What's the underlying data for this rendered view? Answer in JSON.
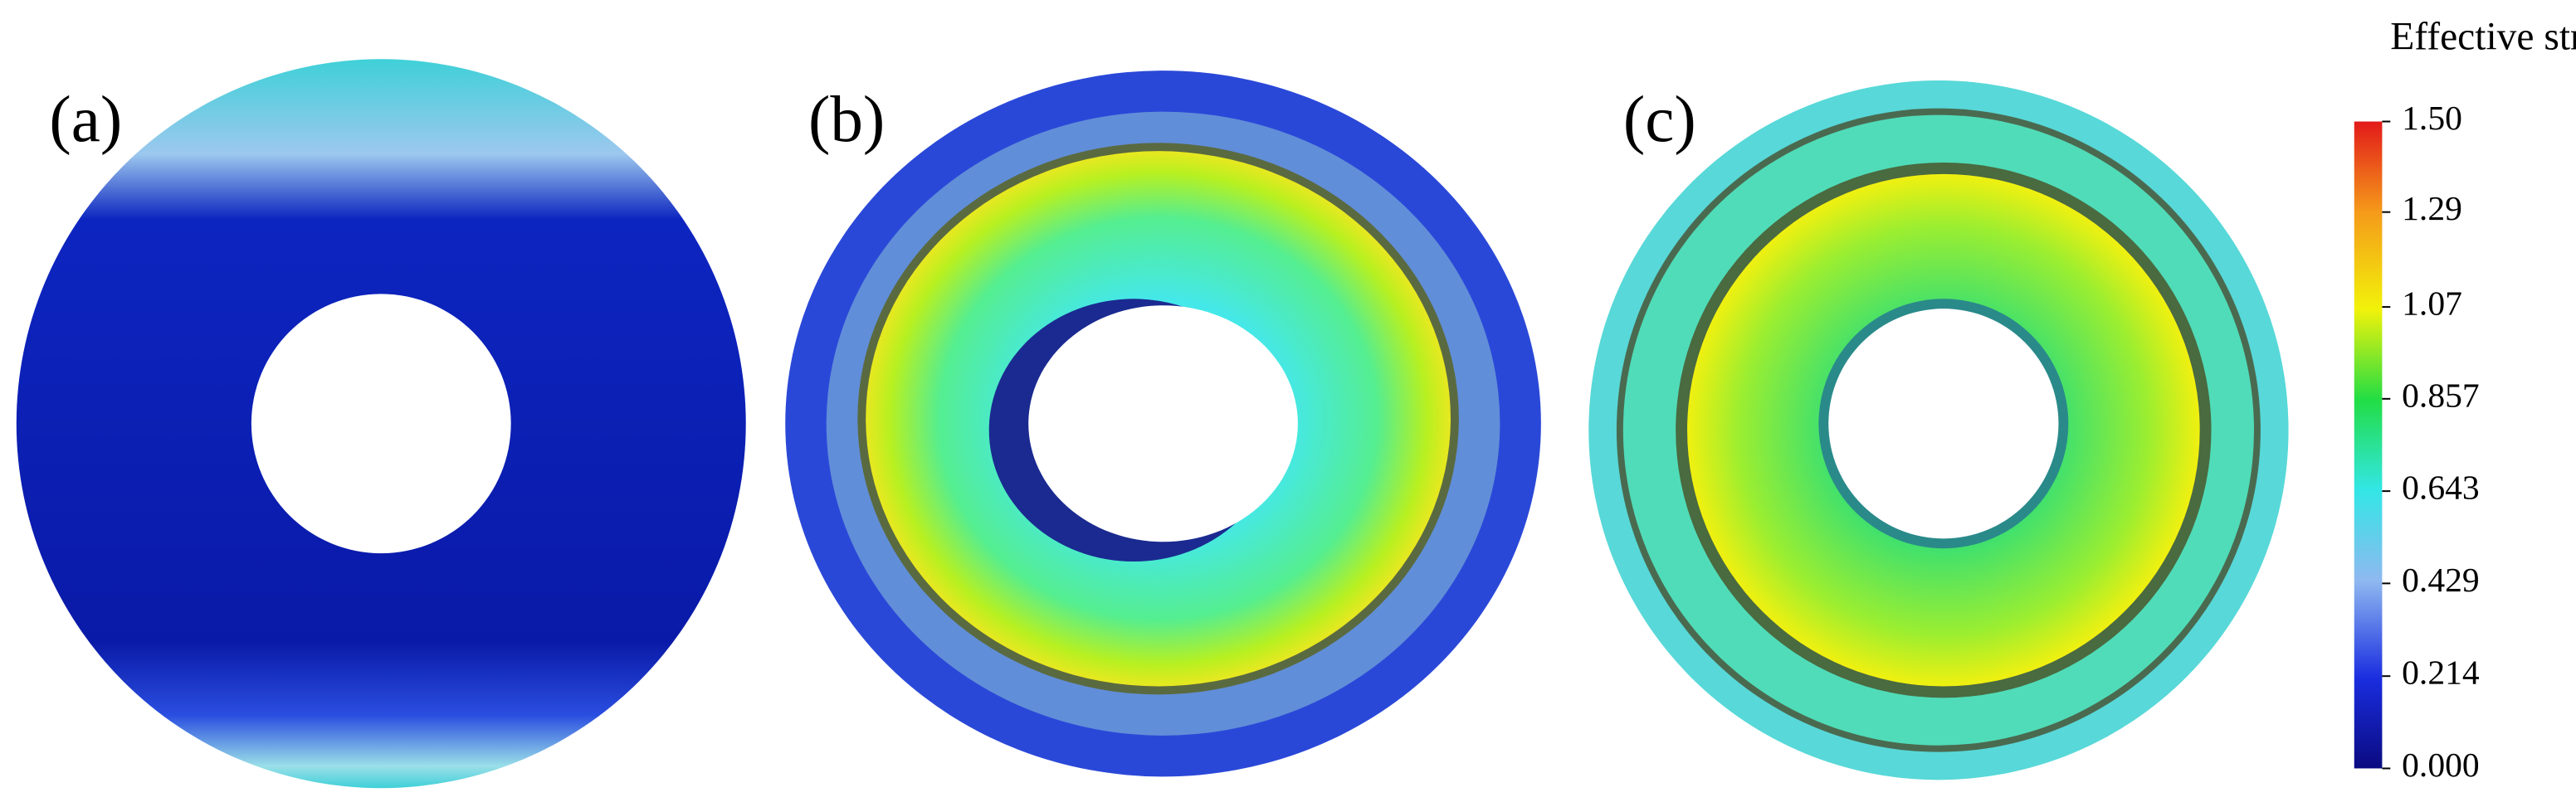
{
  "panels": [
    {
      "label": "(a)"
    },
    {
      "label": "(b)"
    },
    {
      "label": "(c)"
    }
  ],
  "colorbar": {
    "title": "Effective strain",
    "lim": [
      0,
      1.5
    ],
    "ticks": [
      {
        "value": 0,
        "label": "0.000"
      },
      {
        "value": 0.214,
        "label": "0.214"
      },
      {
        "value": 0.429,
        "label": "0.429"
      },
      {
        "value": 0.643,
        "label": "0.643"
      },
      {
        "value": 0.857,
        "label": "0.857"
      },
      {
        "value": 1.07,
        "label": "1.07"
      },
      {
        "value": 1.29,
        "label": "1.29"
      },
      {
        "value": 1.5,
        "label": "1.50"
      }
    ]
  }
}
